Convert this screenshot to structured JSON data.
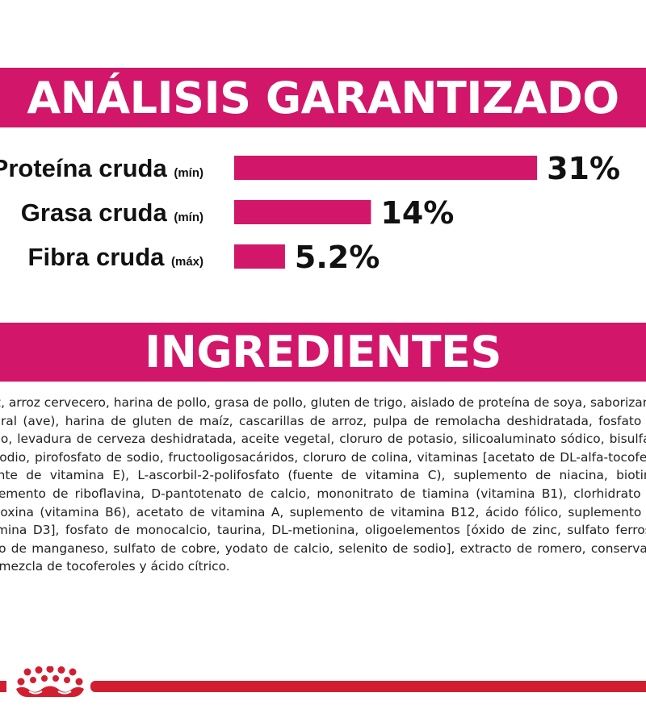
{
  "header_analysis": {
    "title": "ANÁLISIS GARANTIZADO"
  },
  "chart_data": {
    "type": "bar",
    "orientation": "horizontal",
    "title": "ANÁLISIS GARANTIZADO",
    "categories": [
      "Proteína cruda",
      "Grasa cruda",
      "Fibra cruda"
    ],
    "qualifiers": [
      "(mín)",
      "(mín)",
      "(máx)"
    ],
    "values": [
      31,
      14,
      5.2
    ],
    "value_labels": [
      "31%",
      "14%",
      "5.2%"
    ],
    "unit": "%",
    "bar_color": "#d21669",
    "grid": false,
    "legend": "none"
  },
  "header_ingredients": {
    "title": "INGREDIENTES"
  },
  "ingredients": {
    "text": "Maíz, arroz cervecero, harina de pollo, grasa de pollo, gluten de trigo, aislado de proteína de soya, saborizante natural (ave), harina de gluten de maíz, cascarillas de arroz, pulpa de remolacha deshidratada, fosfato de calcio, levadura de cerveza deshidratada, aceite vegetal, cloruro de potasio, silicoaluminato sódico, bisulfato de sodio, pirofosfato de sodio, fructooligosacáridos, cloruro de colina, vitaminas [acetato de DL-alfa-tocoferol (fuente de vitamina E), L-ascorbil-2-polifosfato (fuente de vitamina C), suplemento de niacina, biotina, suplemento de riboflavina, D-pantotenato de calcio, mononitrato de tiamina (vitamina B1), clorhidrato de piridoxina (vitamina B6), acetato de vitamina A, suplemento de vitamina B12, ácido fólico, suplemento de vitamina D3], fosfato de monocalcio, taurina, DL-metionina, oligoelementos [óxido de zinc, sulfato ferroso, óxido de manganeso, sulfato de cobre, yodato de calcio, selenito de sodio], extracto de romero, conservado con mezcla de tocoferoles y ácido cítrico."
  },
  "footer": {
    "logo_icon": "royal-crown-icon",
    "rule_color": "#d21f2f"
  }
}
